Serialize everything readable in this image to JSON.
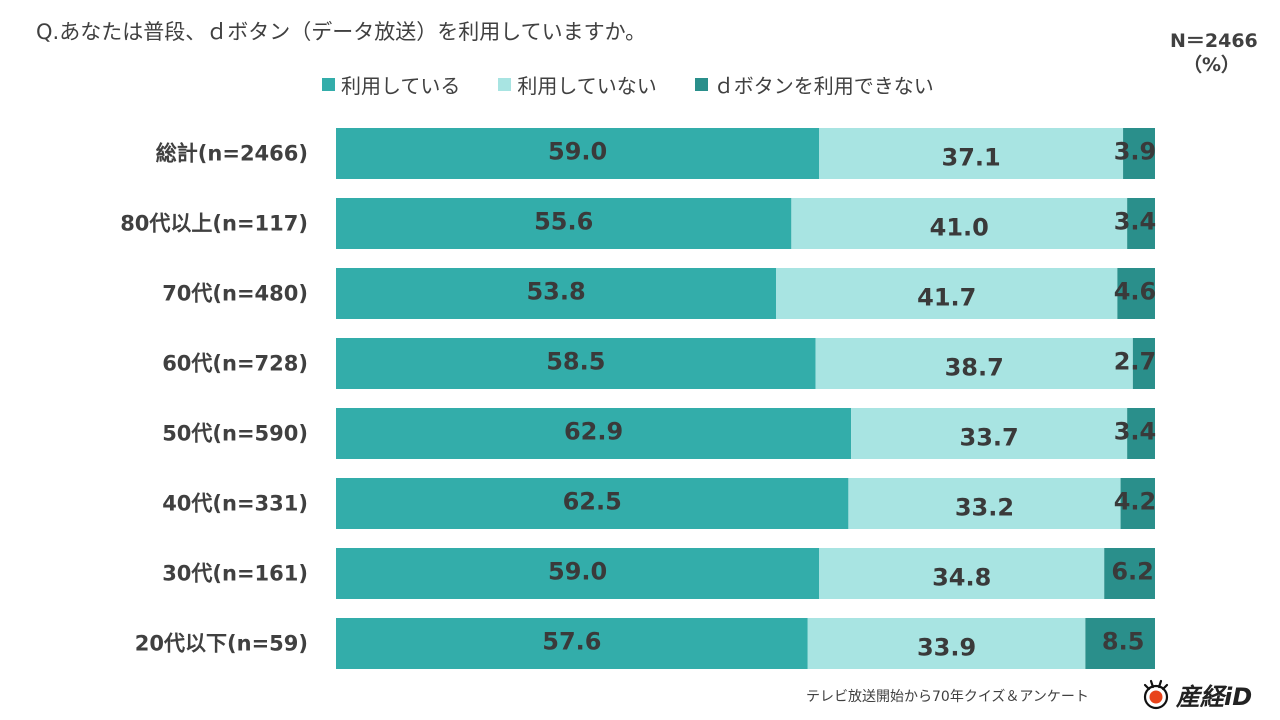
{
  "page": {
    "question": "Q.あなたは普段、ｄボタン（データ放送）を利用していますか。",
    "sample_size": "N＝2466",
    "unit": "（%）",
    "source": "テレビ放送開始から70年クイズ＆アンケート",
    "brand": "産経iD",
    "brand_icon": "sankei-logo-icon"
  },
  "chart_data": {
    "type": "bar",
    "orientation": "horizontal",
    "stacked": true,
    "title": "Q.あなたは普段、ｄボタン（データ放送）を利用していますか。",
    "xlabel": "",
    "ylabel": "",
    "xlim": [
      0,
      100
    ],
    "grid": false,
    "legend_position": "top",
    "categories": [
      "総計(n=2466)",
      "80代以上(n=117)",
      "70代(n=480)",
      "60代(n=728)",
      "50代(n=590)",
      "40代(n=331)",
      "30代(n=161)",
      "20代以下(n=59)"
    ],
    "series": [
      {
        "name": "利用している",
        "color": "#33ADAA",
        "values": [
          59.0,
          55.6,
          53.8,
          58.5,
          62.9,
          62.5,
          59.0,
          57.6
        ]
      },
      {
        "name": "利用していない",
        "color": "#A8E4E2",
        "values": [
          37.1,
          41.0,
          41.7,
          38.7,
          33.7,
          33.2,
          34.8,
          33.9
        ]
      },
      {
        "name": "ｄボタンを利用できない",
        "color": "#2A8F8B",
        "values": [
          3.9,
          3.4,
          4.6,
          2.7,
          3.4,
          4.2,
          6.2,
          8.5
        ]
      }
    ]
  }
}
